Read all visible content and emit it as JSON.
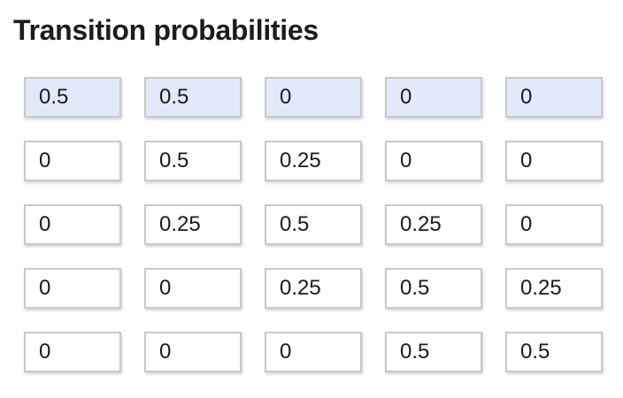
{
  "title": "Transition probabilities",
  "highlight_color": "#e2e9fb",
  "matrix": [
    [
      "0.5",
      "0.5",
      "0",
      "0",
      "0"
    ],
    [
      "0",
      "0.5",
      "0.25",
      "0",
      "0"
    ],
    [
      "0",
      "0.25",
      "0.5",
      "0.25",
      "0"
    ],
    [
      "0",
      "0",
      "0.25",
      "0.5",
      "0.25"
    ],
    [
      "0",
      "0",
      "0",
      "0.5",
      "0.5"
    ]
  ],
  "highlighted_row": 0
}
